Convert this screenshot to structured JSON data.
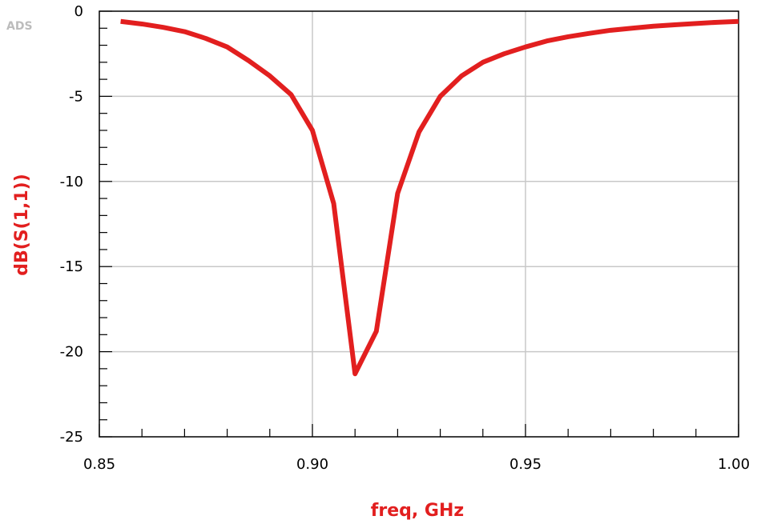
{
  "watermark": "ADS",
  "chart_data": {
    "type": "line",
    "xlabel": "freq, GHz",
    "ylabel": "dB(S(1,1))",
    "xlim": [
      0.85,
      1.0
    ],
    "ylim": [
      -25,
      0
    ],
    "x_ticks": [
      0.85,
      0.9,
      0.95,
      1.0
    ],
    "x_tick_labels": [
      "0.85",
      "0.90",
      "0.95",
      "1.00"
    ],
    "y_ticks": [
      0,
      -5,
      -10,
      -15,
      -20,
      -25
    ],
    "y_tick_labels": [
      "0",
      "-5",
      "-10",
      "-15",
      "-20",
      "-25"
    ],
    "x_minor_step": 0.01,
    "y_minor_step": 1,
    "grid": true,
    "line_color": "#e21f1f",
    "series": [
      {
        "x": [
          0.855,
          0.86,
          0.865,
          0.87,
          0.875,
          0.88,
          0.885,
          0.89,
          0.895,
          0.9,
          0.905,
          0.91,
          0.915,
          0.92,
          0.925,
          0.93,
          0.935,
          0.94,
          0.945,
          0.95,
          0.955,
          0.96,
          0.965,
          0.97,
          0.975,
          0.98,
          0.985,
          0.99,
          0.995,
          1.0
        ],
        "y": [
          -0.6,
          -0.75,
          -0.95,
          -1.2,
          -1.6,
          -2.1,
          -2.9,
          -3.8,
          -4.9,
          -7.0,
          -11.3,
          -21.3,
          -18.8,
          -10.7,
          -7.1,
          -5.0,
          -3.8,
          -3.0,
          -2.5,
          -2.1,
          -1.75,
          -1.5,
          -1.3,
          -1.12,
          -1.0,
          -0.88,
          -0.8,
          -0.72,
          -0.65,
          -0.6
        ]
      }
    ]
  }
}
